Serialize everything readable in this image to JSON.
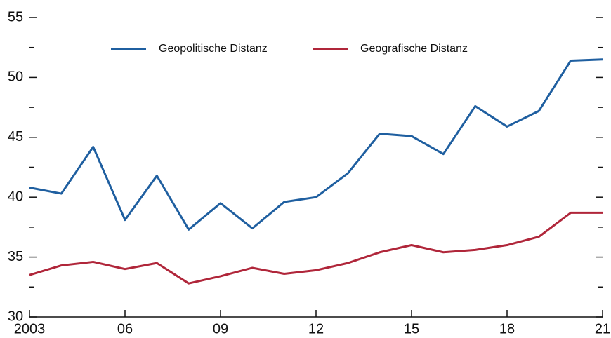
{
  "chart_data": {
    "type": "line",
    "x": [
      2003,
      2004,
      2005,
      2006,
      2007,
      2008,
      2009,
      2010,
      2011,
      2012,
      2013,
      2014,
      2015,
      2016,
      2017,
      2018,
      2019,
      2020,
      2021
    ],
    "series": [
      {
        "name": "Geopolitische Distanz",
        "color": "#1f5fa0",
        "values": [
          40.8,
          40.3,
          44.2,
          38.1,
          41.8,
          37.3,
          39.5,
          37.4,
          39.6,
          40.0,
          42.0,
          45.3,
          45.1,
          43.6,
          47.6,
          45.9,
          47.2,
          51.4,
          51.5
        ]
      },
      {
        "name": "Geografische Distanz",
        "color": "#b0263a",
        "values": [
          33.5,
          34.3,
          34.6,
          34.0,
          34.5,
          32.8,
          33.4,
          34.1,
          33.6,
          33.9,
          34.5,
          35.4,
          36.0,
          35.4,
          35.6,
          36.0,
          36.7,
          38.7,
          38.7
        ]
      }
    ],
    "xlim": [
      2003,
      2021
    ],
    "xticks": [
      2003,
      {
        "value": 2006,
        "label": "06"
      },
      {
        "value": 2009,
        "label": "09"
      },
      {
        "value": 2012,
        "label": "12"
      },
      {
        "value": 2015,
        "label": "15"
      },
      {
        "value": 2018,
        "label": "18"
      },
      {
        "value": 2021,
        "label": "21"
      }
    ],
    "ylim": [
      30,
      55
    ],
    "yticks": [
      30,
      35,
      40,
      45,
      50,
      55
    ],
    "yticks_minor": [
      32.5,
      37.5,
      42.5,
      47.5,
      52.5
    ],
    "legend": "top"
  }
}
